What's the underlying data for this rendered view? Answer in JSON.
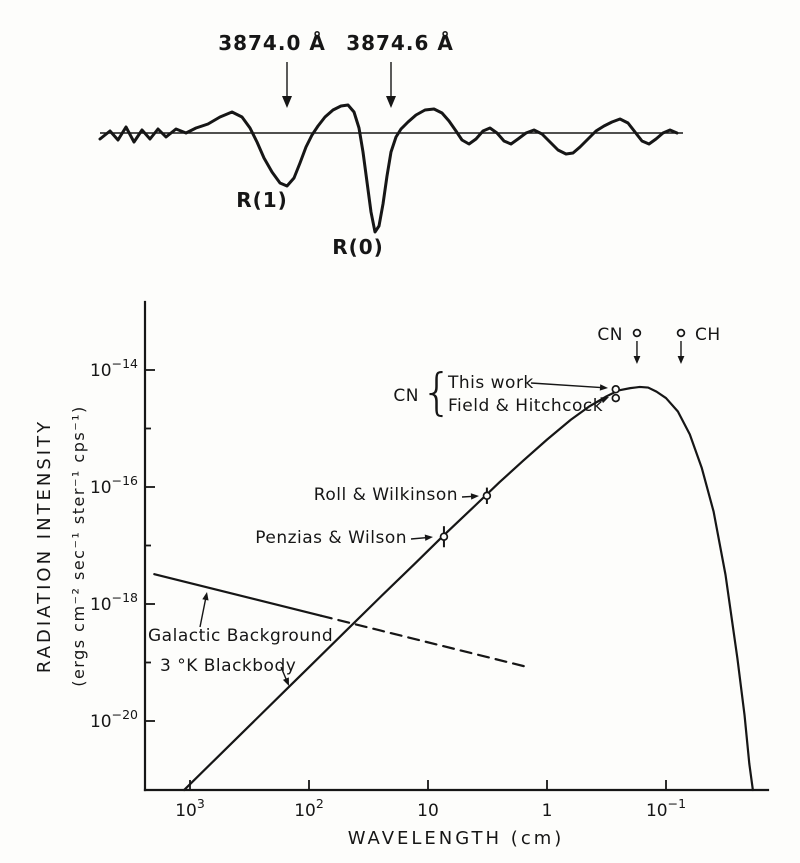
{
  "figure": {
    "background": "#fdfdfb",
    "ink": "#161616"
  },
  "spectrum_panel": {
    "type": "spectrum-trace",
    "description": "CN absorption spectrum near 3874 Å",
    "line_labels": [
      {
        "text": "3874.0 Å"
      },
      {
        "text": "3874.6 Å"
      }
    ],
    "feature_labels": [
      {
        "text": "R(1)"
      },
      {
        "text": "R(0)"
      }
    ],
    "trace": [
      [
        100,
        139
      ],
      [
        110,
        131
      ],
      [
        118,
        140
      ],
      [
        126,
        127
      ],
      [
        134,
        142
      ],
      [
        142,
        130
      ],
      [
        150,
        139
      ],
      [
        158,
        129
      ],
      [
        166,
        137
      ],
      [
        176,
        129
      ],
      [
        186,
        133
      ],
      [
        196,
        128
      ],
      [
        208,
        124
      ],
      [
        220,
        117
      ],
      [
        232,
        112
      ],
      [
        242,
        117
      ],
      [
        250,
        128
      ],
      [
        257,
        142
      ],
      [
        264,
        158
      ],
      [
        272,
        172
      ],
      [
        280,
        183
      ],
      [
        287,
        186
      ],
      [
        294,
        178
      ],
      [
        300,
        163
      ],
      [
        306,
        147
      ],
      [
        312,
        135
      ],
      [
        318,
        126
      ],
      [
        325,
        117
      ],
      [
        333,
        110
      ],
      [
        341,
        106
      ],
      [
        348,
        105
      ],
      [
        354,
        112
      ],
      [
        359,
        128
      ],
      [
        363,
        152
      ],
      [
        367,
        182
      ],
      [
        371,
        212
      ],
      [
        375,
        232
      ],
      [
        379,
        226
      ],
      [
        383,
        204
      ],
      [
        387,
        176
      ],
      [
        391,
        152
      ],
      [
        396,
        137
      ],
      [
        401,
        129
      ],
      [
        408,
        122
      ],
      [
        416,
        115
      ],
      [
        425,
        110
      ],
      [
        434,
        109
      ],
      [
        442,
        113
      ],
      [
        449,
        121
      ],
      [
        456,
        131
      ],
      [
        462,
        140
      ],
      [
        469,
        144
      ],
      [
        476,
        139
      ],
      [
        483,
        131
      ],
      [
        490,
        128
      ],
      [
        497,
        133
      ],
      [
        504,
        141
      ],
      [
        511,
        144
      ],
      [
        518,
        139
      ],
      [
        526,
        133
      ],
      [
        534,
        130
      ],
      [
        542,
        134
      ],
      [
        550,
        142
      ],
      [
        558,
        150
      ],
      [
        566,
        154
      ],
      [
        573,
        153
      ],
      [
        580,
        147
      ],
      [
        588,
        139
      ],
      [
        596,
        131
      ],
      [
        604,
        126
      ],
      [
        612,
        122
      ],
      [
        620,
        119
      ],
      [
        628,
        123
      ],
      [
        635,
        132
      ],
      [
        642,
        141
      ],
      [
        649,
        144
      ],
      [
        656,
        139
      ],
      [
        663,
        133
      ],
      [
        670,
        130
      ],
      [
        677,
        133
      ]
    ]
  },
  "chart_data": {
    "type": "line",
    "xlabel": "WAVELENGTH  (cm)",
    "ylabel": "RADIATION  INTENSITY",
    "ylabel_units": "(ergs cm⁻² sec⁻¹ ster⁻¹ cps⁻¹)",
    "x_axis": {
      "scale": "log",
      "direction": "wavelength decreases to the right",
      "ticks": [
        {
          "label": "10³",
          "base": "10",
          "exp": "3",
          "log_wavelength": 3
        },
        {
          "label": "10²",
          "base": "10",
          "exp": "2",
          "log_wavelength": 2
        },
        {
          "label": "10",
          "base": "10",
          "exp": "",
          "log_wavelength": 1
        },
        {
          "label": "1",
          "base": "1",
          "exp": "",
          "log_wavelength": 0
        },
        {
          "label": "10⁻¹",
          "base": "10",
          "exp": "−1",
          "log_wavelength": -1
        }
      ]
    },
    "y_axis": {
      "scale": "log",
      "ticks": [
        {
          "label": "10⁻¹⁴",
          "base": "10",
          "exp": "−14",
          "log_intensity": -14
        },
        {
          "label": "10⁻¹⁶",
          "base": "10",
          "exp": "−16",
          "log_intensity": -16
        },
        {
          "label": "10⁻¹⁸",
          "base": "10",
          "exp": "−18",
          "log_intensity": -18
        },
        {
          "label": "10⁻²⁰",
          "base": "10",
          "exp": "−20",
          "log_intensity": -20
        }
      ],
      "minor_ticks_log": [
        -15,
        -17,
        -19
      ]
    },
    "series": [
      {
        "name": "3 °K Blackbody",
        "style": "solid",
        "points_log": [
          [
            3.05,
            -21.18
          ],
          [
            2.8,
            -20.68
          ],
          [
            2.5,
            -20.08
          ],
          [
            2.2,
            -19.48
          ],
          [
            2.0,
            -19.08
          ],
          [
            1.7,
            -18.48
          ],
          [
            1.4,
            -17.88
          ],
          [
            1.1,
            -17.29
          ],
          [
            0.87,
            -16.83
          ],
          [
            0.6,
            -16.31
          ],
          [
            0.4,
            -15.92
          ],
          [
            0.2,
            -15.55
          ],
          [
            0.0,
            -15.19
          ],
          [
            -0.2,
            -14.85
          ],
          [
            -0.35,
            -14.63
          ],
          [
            -0.5,
            -14.45
          ],
          [
            -0.6,
            -14.35
          ],
          [
            -0.7,
            -14.31
          ],
          [
            -0.78,
            -14.29
          ],
          [
            -0.85,
            -14.3
          ],
          [
            -0.92,
            -14.37
          ],
          [
            -1.0,
            -14.48
          ],
          [
            -1.1,
            -14.71
          ],
          [
            -1.2,
            -15.1
          ],
          [
            -1.3,
            -15.67
          ],
          [
            -1.4,
            -16.42
          ],
          [
            -1.5,
            -17.5
          ],
          [
            -1.6,
            -18.93
          ],
          [
            -1.66,
            -19.9
          ],
          [
            -1.7,
            -20.73
          ],
          [
            -1.73,
            -21.18
          ]
        ]
      },
      {
        "name": "Galactic Background",
        "style": "solid-then-dashed",
        "points_log": [
          [
            3.3,
            -17.49
          ],
          [
            1.9,
            -18.2
          ],
          [
            0.14,
            -19.09
          ]
        ],
        "dash_from_index": 1
      }
    ],
    "measurements": [
      {
        "name": "Penzias & Wilson",
        "wavelength_cm": 7.35,
        "log_wavelength": 0.866,
        "log_intensity": -16.85,
        "error_dex": 0.18
      },
      {
        "name": "Roll & Wilkinson",
        "wavelength_cm": 3.2,
        "log_wavelength": 0.505,
        "log_intensity": -16.15,
        "error_dex": 0.14
      },
      {
        "name": "This work",
        "species": "CN",
        "wavelength_cm": 0.264,
        "log_wavelength": -0.578,
        "log_intensity": -14.33,
        "error_dex": 0
      },
      {
        "name": "Field & Hitchcock",
        "species": "CN",
        "wavelength_cm": 0.264,
        "log_wavelength": -0.578,
        "log_intensity": -14.48,
        "error_dex": 0
      }
    ],
    "upper_limits": [
      {
        "label": "CN",
        "log_wavelength": -0.756
      },
      {
        "label": "CH",
        "log_wavelength": -1.126
      }
    ],
    "labels": {
      "cn_group": "CN",
      "brace": "{"
    }
  }
}
